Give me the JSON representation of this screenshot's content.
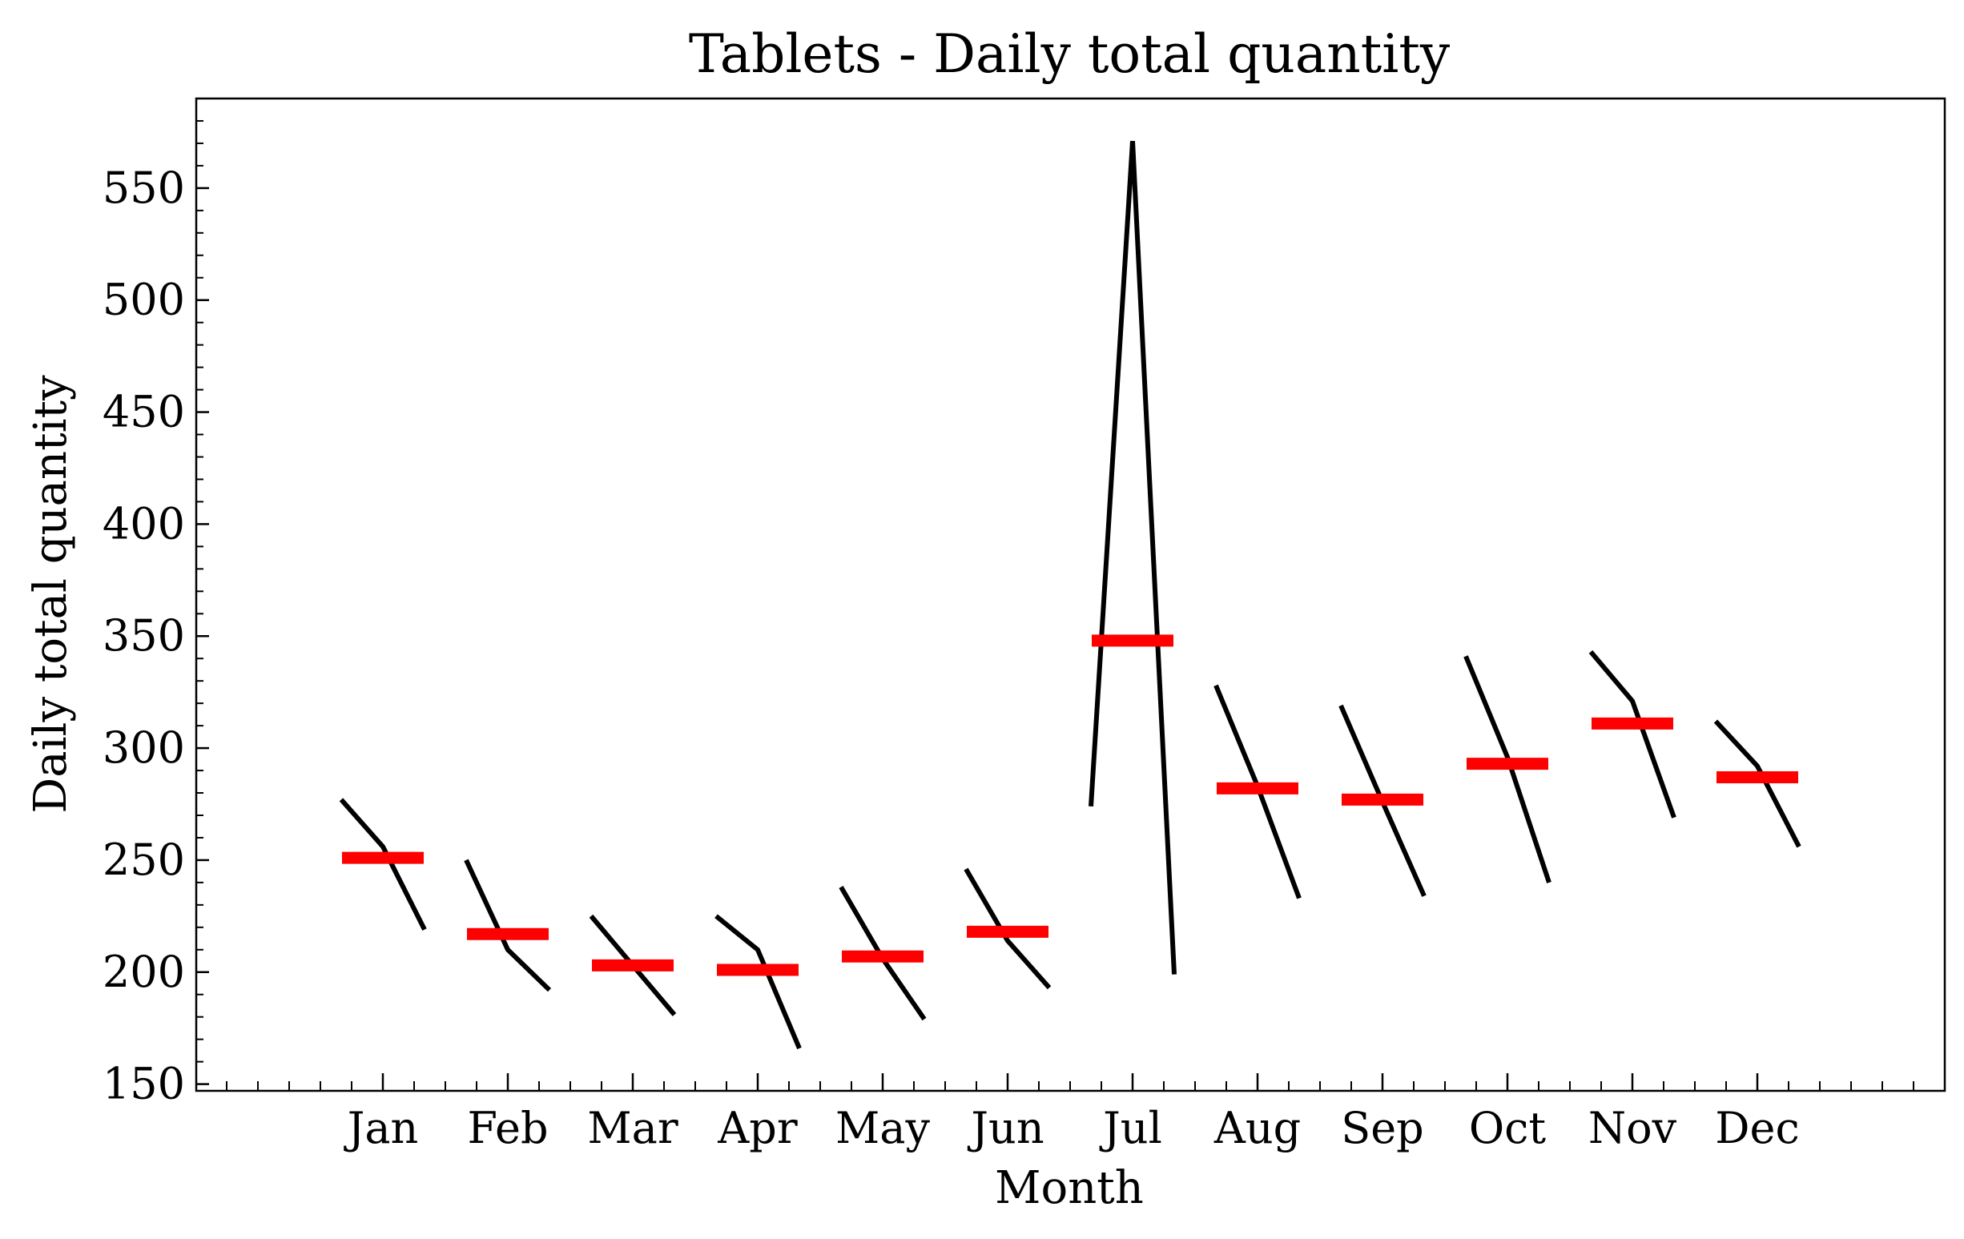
{
  "chart_data": {
    "type": "line",
    "subtype": "month-subseries",
    "title": "Tablets - Daily total quantity",
    "xlabel": "Month",
    "ylabel": "Daily total quantity",
    "categories": [
      "Jan",
      "Feb",
      "Mar",
      "Apr",
      "May",
      "Jun",
      "Jul",
      "Aug",
      "Sep",
      "Oct",
      "Nov",
      "Dec"
    ],
    "ylim": [
      147,
      590
    ],
    "y_ticks": [
      150,
      200,
      250,
      300,
      350,
      400,
      450,
      500,
      550
    ],
    "grid": false,
    "colors": {
      "subseries": "#000000",
      "mean": "#ff0000"
    },
    "subseries": [
      {
        "month": "Jan",
        "values": [
          277,
          256,
          219
        ],
        "mean": 251
      },
      {
        "month": "Feb",
        "values": [
          250,
          210,
          192
        ],
        "mean": 217
      },
      {
        "month": "Mar",
        "values": [
          225,
          203,
          181
        ],
        "mean": 203
      },
      {
        "month": "Apr",
        "values": [
          225,
          210,
          166
        ],
        "mean": 201
      },
      {
        "month": "May",
        "values": [
          238,
          206,
          179
        ],
        "mean": 207
      },
      {
        "month": "Jun",
        "values": [
          246,
          214,
          193
        ],
        "mean": 218
      },
      {
        "month": "Jul",
        "values": [
          274,
          571,
          199
        ],
        "mean": 348
      },
      {
        "month": "Aug",
        "values": [
          328,
          283,
          233
        ],
        "mean": 282
      },
      {
        "month": "Sep",
        "values": [
          319,
          276,
          234
        ],
        "mean": 277
      },
      {
        "month": "Oct",
        "values": [
          341,
          296,
          240
        ],
        "mean": 293
      },
      {
        "month": "Nov",
        "values": [
          343,
          321,
          269
        ],
        "mean": 311
      },
      {
        "month": "Dec",
        "values": [
          312,
          292,
          256
        ],
        "mean": 287
      }
    ]
  }
}
